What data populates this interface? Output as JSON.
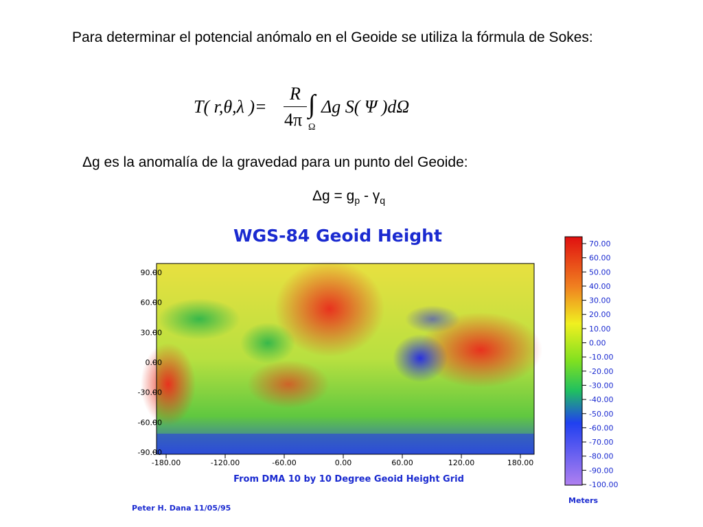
{
  "paragraph1": "Para determinar el potencial anómalo en el Geoide se utiliza la fórmula de Sokes:",
  "formula": {
    "lhs": "T( r,θ,λ )=",
    "numerator": "R",
    "denominator": "4π",
    "integral": "∫",
    "domain": "Ω",
    "integrand": "Δg S( Ψ )dΩ"
  },
  "paragraph2": "Δg es la anomalía de la gravedad para un punto del Geoide:",
  "equation": {
    "lhs": "Δg = g",
    "sub1": "p",
    "mid": " - γ",
    "sub2": "q"
  },
  "figure": {
    "title": "WGS-84 Geoid Height",
    "xticks": [
      "-180.00",
      "-120.00",
      "-60.00",
      "0.00",
      "60.00",
      "120.00",
      "180.00"
    ],
    "yticks": [
      "90.00",
      "60.00",
      "30.00",
      "0.00",
      "-30.00",
      "-60.00",
      "-90.00"
    ],
    "subtitle": "From DMA 10 by 10 Degree Geoid Height Grid",
    "credit": "Peter H. Dana 11/05/95",
    "colorbar": [
      "70.00",
      "60.00",
      "50.00",
      "40.00",
      "30.00",
      "20.00",
      "10.00",
      "0.00",
      "-10.00",
      "-20.00",
      "-30.00",
      "-40.00",
      "-50.00",
      "-60.00",
      "-70.00",
      "-80.00",
      "-90.00",
      "-100.00"
    ],
    "colorbar_unit": "Meters"
  }
}
